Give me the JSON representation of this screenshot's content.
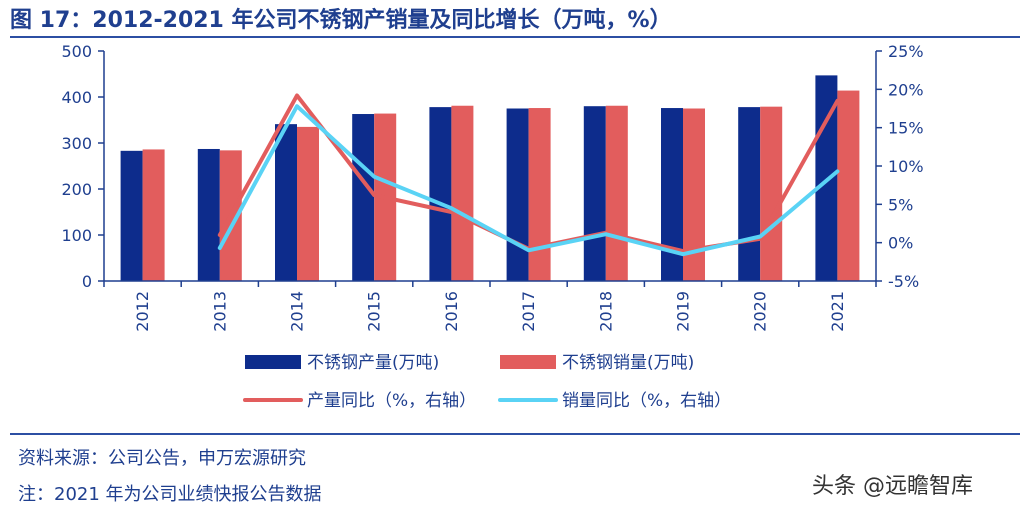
{
  "title": "图 17：2012-2021 年公司不锈钢产销量及同比增长（万吨，%）",
  "source": "资料来源：公司公告，申万宏源研究",
  "note": "注：2021 年为公司业绩快报公告数据",
  "watermark": "头条 @远瞻智库",
  "chart_data": {
    "type": "bar",
    "categories": [
      "2012",
      "2013",
      "2014",
      "2015",
      "2016",
      "2017",
      "2018",
      "2019",
      "2020",
      "2021"
    ],
    "series": [
      {
        "name": "不锈钢产量(万吨)",
        "type": "bar",
        "axis": "left",
        "color": "#0d2c8c",
        "values": [
          283,
          287,
          341,
          363,
          378,
          375,
          380,
          376,
          378,
          447
        ]
      },
      {
        "name": "不锈钢销量(万吨)",
        "type": "bar",
        "axis": "left",
        "color": "#e25d5d",
        "values": [
          286,
          284,
          335,
          364,
          381,
          376,
          381,
          375,
          379,
          414
        ]
      },
      {
        "name": "产量同比（%，右轴）",
        "type": "line",
        "axis": "right",
        "color": "#e25d5d",
        "values": [
          null,
          1.0,
          19.2,
          6.2,
          4.0,
          -0.8,
          1.3,
          -1.1,
          0.5,
          18.5
        ]
      },
      {
        "name": "销量同比（%，右轴）",
        "type": "line",
        "axis": "right",
        "color": "#5ad3f5",
        "values": [
          null,
          -0.7,
          17.8,
          8.6,
          4.5,
          -1.0,
          1.1,
          -1.5,
          0.8,
          9.3
        ]
      }
    ],
    "left_axis": {
      "min": 0,
      "max": 500,
      "ticks": [
        "0",
        "100",
        "200",
        "300",
        "400",
        "500"
      ]
    },
    "right_axis": {
      "min": -5,
      "max": 25,
      "ticks": [
        "-5%",
        "0%",
        "5%",
        "10%",
        "15%",
        "20%",
        "25%"
      ]
    },
    "legend_position": "bottom",
    "grid": false
  }
}
